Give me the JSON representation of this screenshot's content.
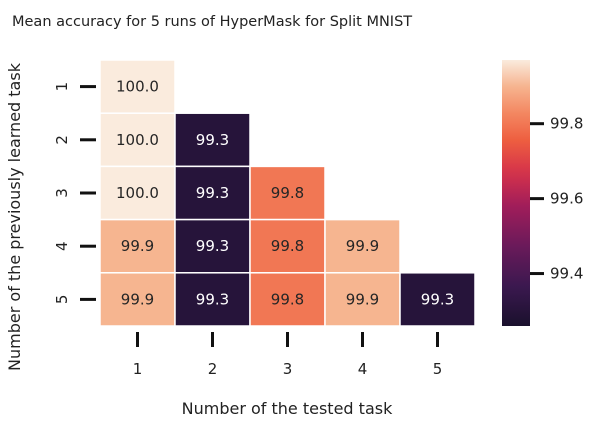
{
  "chart_data": {
    "type": "heatmap",
    "title": "Mean accuracy for 5 runs of HyperMask for Split MNIST",
    "xlabel": "Number of the tested task",
    "ylabel": "Number of the previously learned task",
    "x_categories": [
      "1",
      "2",
      "3",
      "4",
      "5"
    ],
    "y_categories": [
      "1",
      "2",
      "3",
      "4",
      "5"
    ],
    "values": [
      [
        100.0,
        null,
        null,
        null,
        null
      ],
      [
        100.0,
        99.3,
        null,
        null,
        null
      ],
      [
        100.0,
        99.3,
        99.8,
        null,
        null
      ],
      [
        99.9,
        99.3,
        99.8,
        99.9,
        null
      ],
      [
        99.9,
        99.3,
        99.8,
        99.9,
        99.3
      ]
    ],
    "cell_labels": [
      [
        "100.0",
        null,
        null,
        null,
        null
      ],
      [
        "100.0",
        "99.3",
        null,
        null,
        null
      ],
      [
        "100.0",
        "99.3",
        "99.8",
        null,
        null
      ],
      [
        "99.9",
        "99.3",
        "99.8",
        "99.9",
        null
      ],
      [
        "99.9",
        "99.3",
        "99.8",
        "99.9",
        "99.3"
      ]
    ],
    "colorbar": {
      "range": [
        99.26,
        99.97
      ],
      "ticks": [
        99.4,
        99.6,
        99.8
      ],
      "tick_labels": [
        "99.4",
        "99.6",
        "99.8"
      ],
      "colormap": "rocket"
    }
  }
}
